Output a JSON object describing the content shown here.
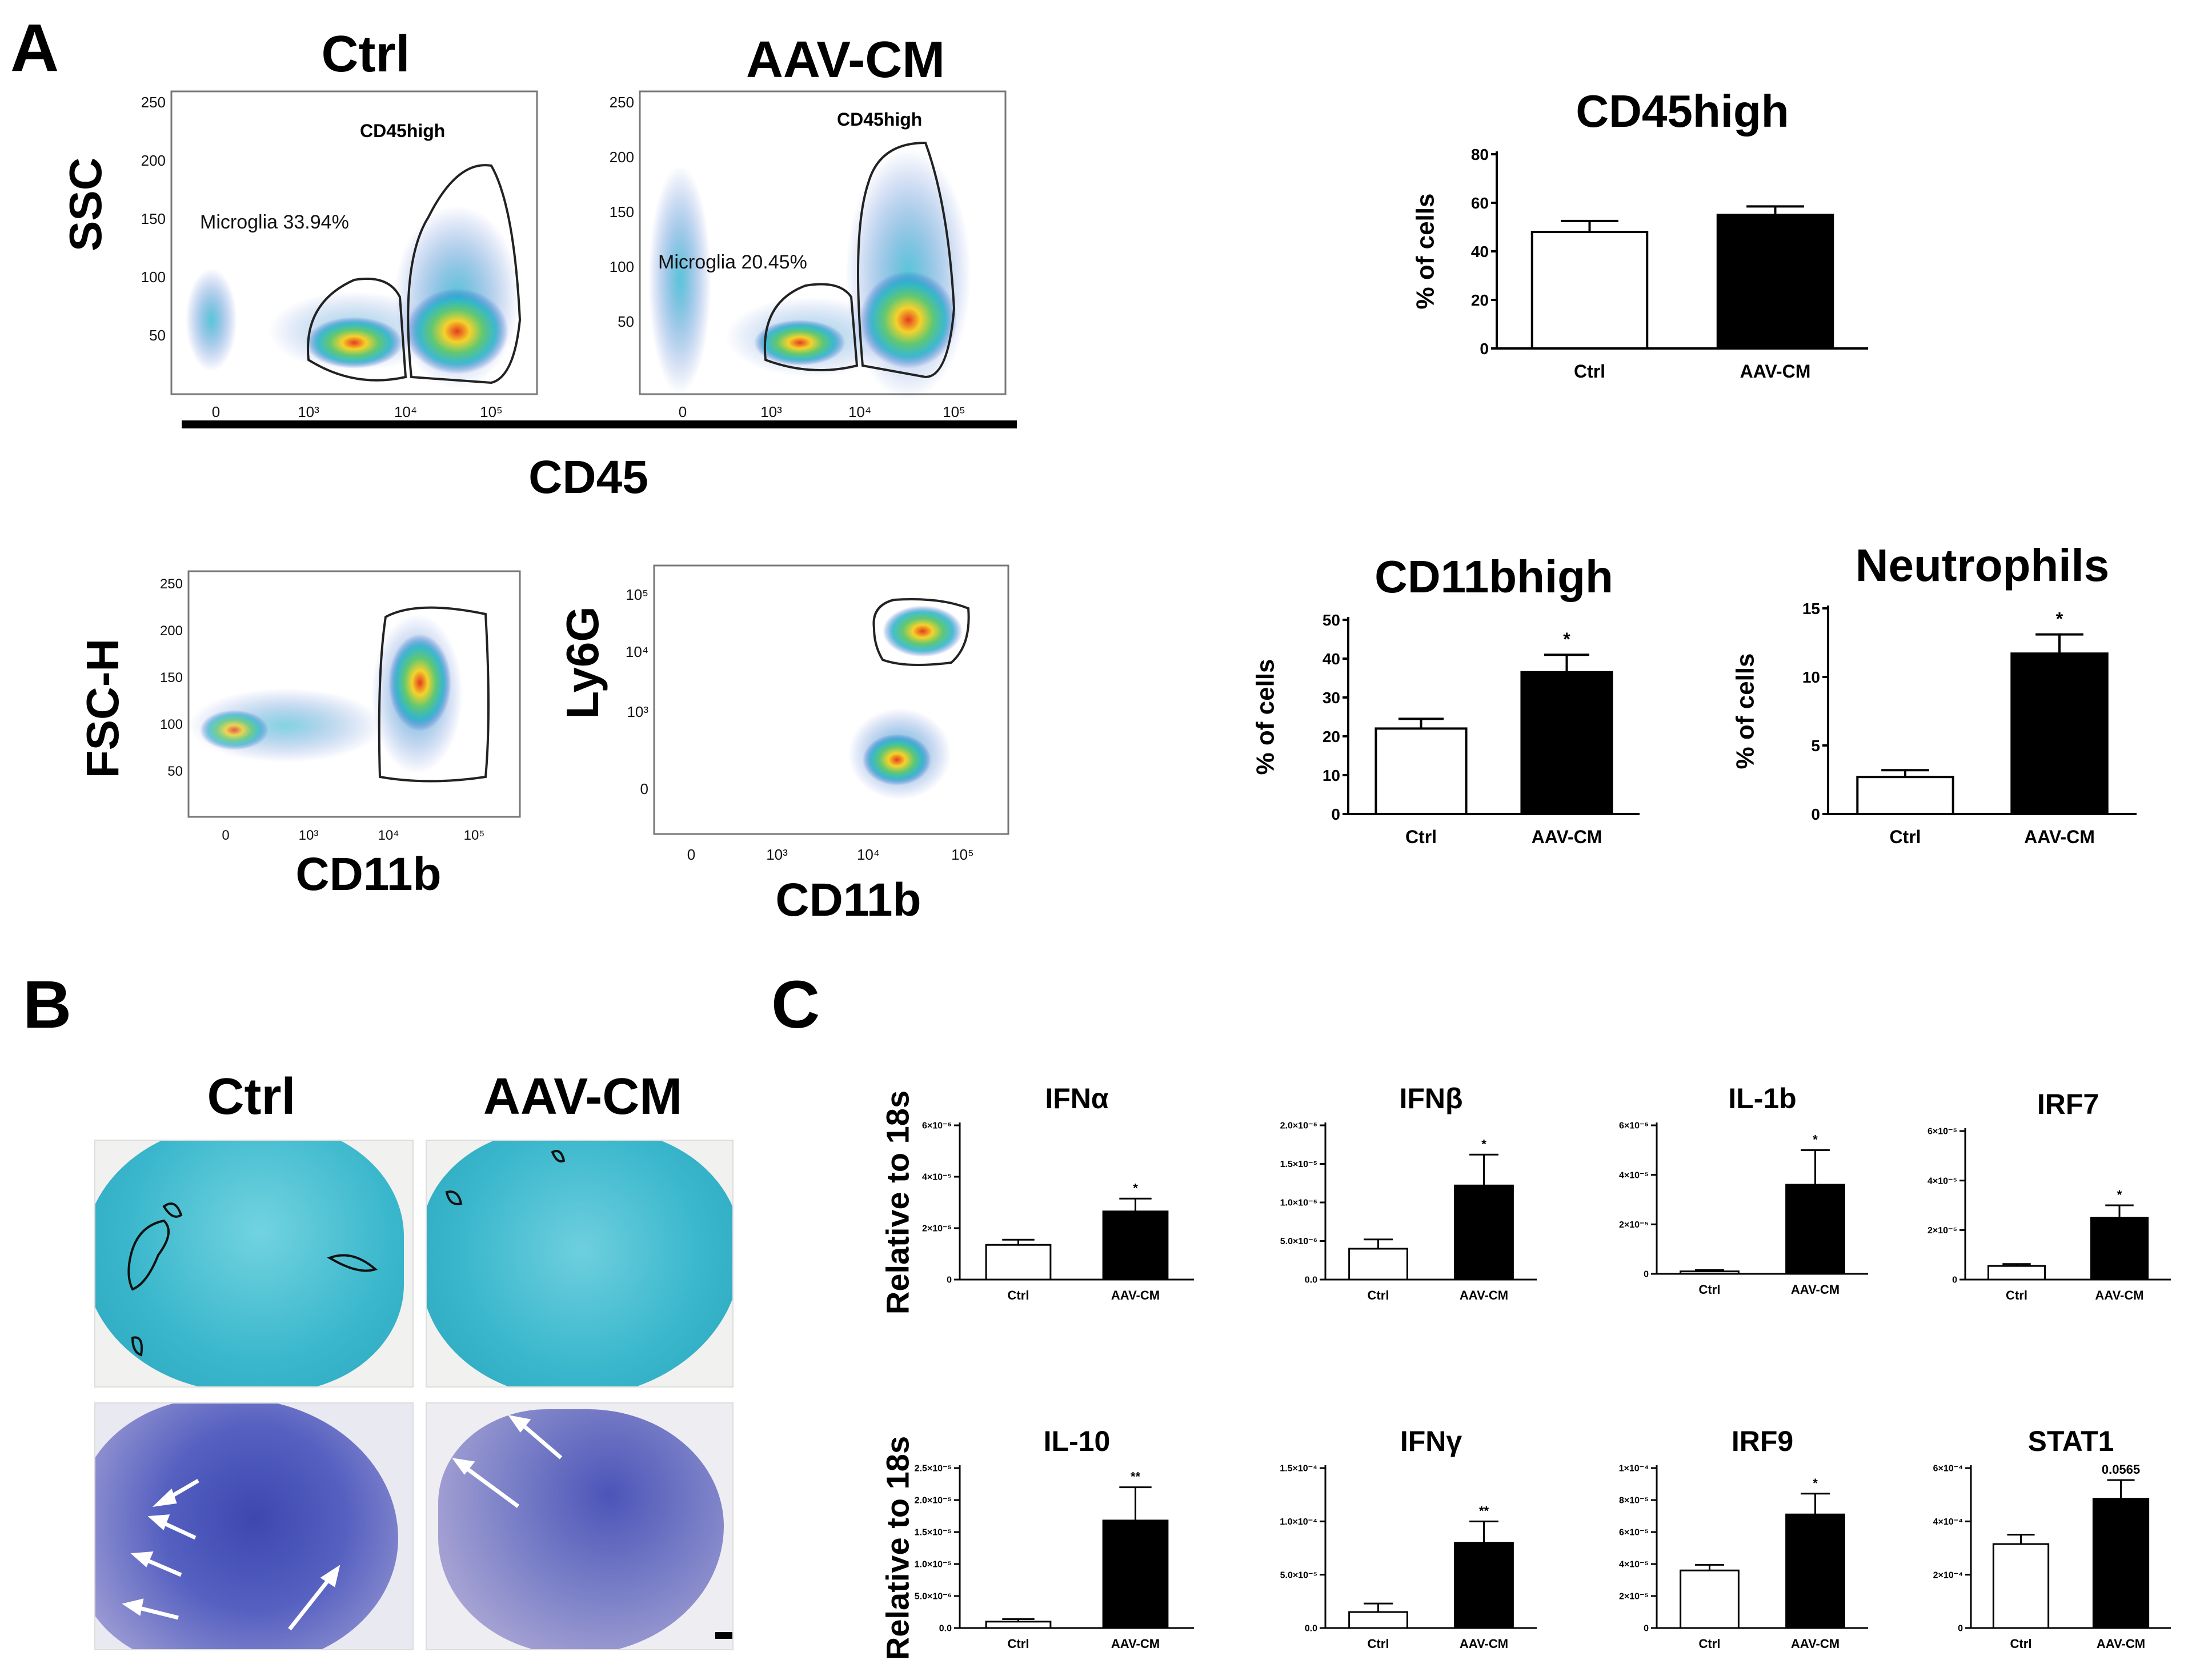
{
  "panels": {
    "a": "A",
    "b": "B",
    "c": "C"
  },
  "flow": {
    "ctrl_title": "Ctrl",
    "aav_title": "AAV-CM",
    "ssc_label": "SSC",
    "cd45_label": "CD45",
    "fsch_label": "FSC-H",
    "ly6g_label": "Ly6G",
    "cd11b_label": "CD11b",
    "gate_cd45high": "CD45high",
    "microglia_ctrl": "Microglia 33.94%",
    "microglia_aav": "Microglia 20.45%",
    "lin_ticks": [
      "250",
      "200",
      "150",
      "100",
      "50"
    ],
    "log_ticks": [
      "0",
      "10³",
      "10⁴",
      "10⁵"
    ]
  },
  "histo": {
    "ctrl_title": "Ctrl",
    "aav_title": "AAV-CM"
  },
  "colors": {
    "filled": "#000000",
    "open": "#ffffff",
    "lfb": "#3ab7cc",
    "cv": "#4a55b8"
  },
  "chart_data": [
    {
      "id": "cd45high",
      "type": "bar",
      "title": "CD45high",
      "ylabel": "% of cells",
      "categories": [
        "Ctrl",
        "AAV-CM"
      ],
      "values": [
        48,
        55
      ],
      "errors": [
        4.5,
        3.5
      ],
      "sig": [
        "",
        ""
      ],
      "ylim": [
        0,
        80
      ],
      "yticks": [
        "0",
        "20",
        "40",
        "60",
        "80"
      ]
    },
    {
      "id": "cd11bhigh",
      "type": "bar",
      "title": "CD11bhigh",
      "ylabel": "% of cells",
      "categories": [
        "Ctrl",
        "AAV-CM"
      ],
      "values": [
        22,
        36.5
      ],
      "errors": [
        2.5,
        4.5
      ],
      "sig": [
        "",
        "*"
      ],
      "ylim": [
        0,
        50
      ],
      "yticks": [
        "0",
        "10",
        "20",
        "30",
        "40",
        "50"
      ]
    },
    {
      "id": "neutrophils",
      "type": "bar",
      "title": "Neutrophils",
      "ylabel": "% of cells",
      "categories": [
        "Ctrl",
        "AAV-CM"
      ],
      "values": [
        2.7,
        11.7
      ],
      "errors": [
        0.5,
        1.4
      ],
      "sig": [
        "",
        "*"
      ],
      "ylim": [
        0,
        15
      ],
      "yticks": [
        "0",
        "5",
        "10",
        "15"
      ]
    },
    {
      "id": "ifna",
      "type": "bar",
      "title": "IFNα",
      "ylabel": "Relative to 18s",
      "categories": [
        "Ctrl",
        "AAV-CM"
      ],
      "values": [
        1.35,
        2.65
      ],
      "errors": [
        0.2,
        0.5
      ],
      "sig": [
        "",
        "*"
      ],
      "ylim": [
        0,
        6
      ],
      "yticks": [
        "0",
        "2×10⁻⁵",
        "4×10⁻⁵",
        "6×10⁻⁵"
      ]
    },
    {
      "id": "ifnb",
      "type": "bar",
      "title": "IFNβ",
      "ylabel": "",
      "categories": [
        "Ctrl",
        "AAV-CM"
      ],
      "values": [
        0.4,
        1.22
      ],
      "errors": [
        0.12,
        0.4
      ],
      "sig": [
        "",
        "*"
      ],
      "ylim": [
        0,
        2
      ],
      "yticks": [
        "0.0",
        "5.0×10⁻⁶",
        "1.0×10⁻⁵",
        "1.5×10⁻⁵",
        "2.0×10⁻⁵"
      ]
    },
    {
      "id": "il1b",
      "type": "bar",
      "title": "IL-1b",
      "ylabel": "",
      "categories": [
        "Ctrl",
        "AAV-CM"
      ],
      "values": [
        0.1,
        3.6
      ],
      "errors": [
        0.05,
        1.4
      ],
      "sig": [
        "",
        "*"
      ],
      "ylim": [
        0,
        6
      ],
      "yticks": [
        "0",
        "2×10⁻⁵",
        "4×10⁻⁵",
        "6×10⁻⁵"
      ]
    },
    {
      "id": "irf7",
      "type": "bar",
      "title": "IRF7",
      "ylabel": "",
      "categories": [
        "Ctrl",
        "AAV-CM"
      ],
      "values": [
        0.55,
        2.5
      ],
      "errors": [
        0.08,
        0.5
      ],
      "sig": [
        "",
        "*"
      ],
      "ylim": [
        0,
        6
      ],
      "yticks": [
        "0",
        "2×10⁻⁵",
        "4×10⁻⁵",
        "6×10⁻⁵"
      ]
    },
    {
      "id": "il10",
      "type": "bar",
      "title": "IL-10",
      "ylabel": "Relative to 18s",
      "categories": [
        "Ctrl",
        "AAV-CM"
      ],
      "values": [
        0.1,
        1.68
      ],
      "errors": [
        0.04,
        0.52
      ],
      "sig": [
        "",
        "**"
      ],
      "ylim": [
        0,
        2.5
      ],
      "yticks": [
        "0.0",
        "5.0×10⁻⁶",
        "1.0×10⁻⁵",
        "1.5×10⁻⁵",
        "2.0×10⁻⁵",
        "2.5×10⁻⁵"
      ]
    },
    {
      "id": "ifng",
      "type": "bar",
      "title": "IFNγ",
      "ylabel": "",
      "categories": [
        "Ctrl",
        "AAV-CM"
      ],
      "values": [
        0.15,
        0.8
      ],
      "errors": [
        0.08,
        0.2
      ],
      "sig": [
        "",
        "**"
      ],
      "ylim": [
        0,
        1.5
      ],
      "yticks": [
        "0.0",
        "5.0×10⁻⁵",
        "1.0×10⁻⁴",
        "1.5×10⁻⁴"
      ]
    },
    {
      "id": "irf9",
      "type": "bar",
      "title": "IRF9",
      "ylabel": "",
      "categories": [
        "Ctrl",
        "AAV-CM"
      ],
      "values": [
        3.6,
        7.1
      ],
      "errors": [
        0.35,
        1.3
      ],
      "sig": [
        "",
        "*"
      ],
      "ylim": [
        0,
        10
      ],
      "yticks": [
        "0",
        "2×10⁻⁵",
        "4×10⁻⁵",
        "6×10⁻⁵",
        "8×10⁻⁵",
        "1×10⁻⁴"
      ]
    },
    {
      "id": "stat1",
      "type": "bar",
      "title": "STAT1",
      "ylabel": "",
      "categories": [
        "Ctrl",
        "AAV-CM"
      ],
      "values": [
        3.15,
        4.85
      ],
      "errors": [
        0.35,
        0.7
      ],
      "sig": [
        "",
        "0.0565"
      ],
      "ylim": [
        0,
        6
      ],
      "yticks": [
        "0",
        "2×10⁻⁴",
        "4×10⁻⁴",
        "6×10⁻⁴"
      ]
    }
  ]
}
